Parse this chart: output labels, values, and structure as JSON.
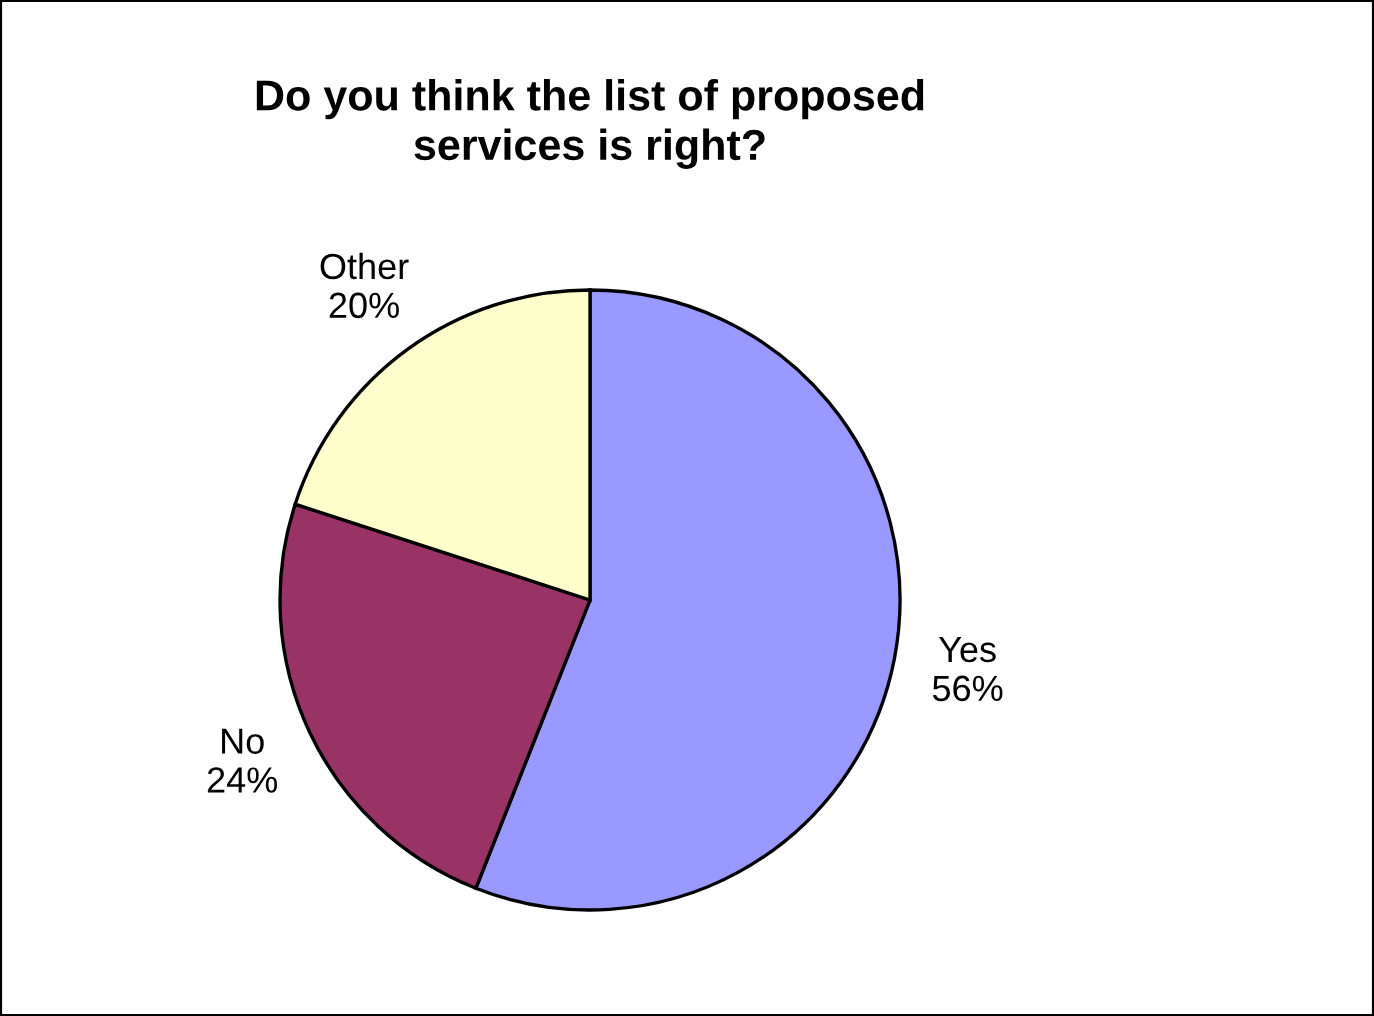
{
  "chart_data": {
    "type": "pie",
    "title": "Do you think the list of proposed\nservices is right?",
    "categories": [
      "Yes",
      "No",
      "Other"
    ],
    "values": [
      56,
      24,
      20
    ],
    "value_labels": [
      "56%",
      "24%",
      "20%"
    ],
    "colors": [
      "#9999ff",
      "#993366",
      "#ffffcc"
    ],
    "legend": false
  }
}
